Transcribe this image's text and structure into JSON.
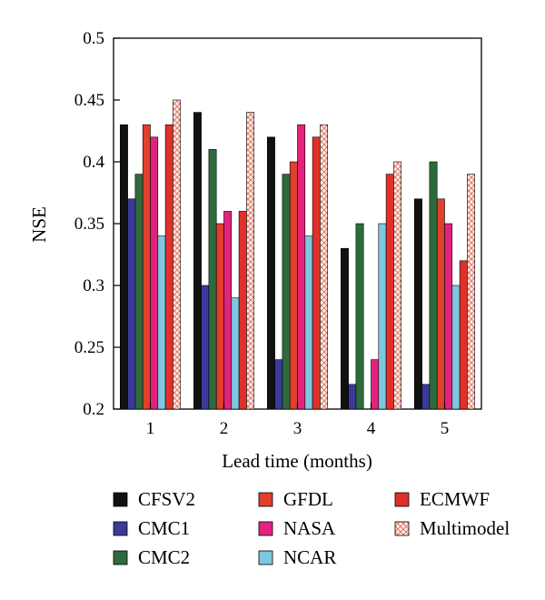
{
  "chart_data": {
    "type": "bar",
    "xlabel": "Lead time (months)",
    "ylabel": "NSE",
    "ylim": [
      0.2,
      0.5
    ],
    "yticks": [
      "0.2",
      "0.25",
      "0.3",
      "0.35",
      "0.4",
      "0.45",
      "0.5"
    ],
    "categories": [
      "1",
      "2",
      "3",
      "4",
      "5"
    ],
    "grid": false,
    "legend_placement": "bottom",
    "series": [
      {
        "name": "CFSV2",
        "color": "#111111",
        "values": [
          0.43,
          0.44,
          0.42,
          0.33,
          0.37
        ]
      },
      {
        "name": "CMC1",
        "color": "#3b3a9a",
        "values": [
          0.37,
          0.3,
          0.24,
          0.22,
          0.22
        ]
      },
      {
        "name": "CMC2",
        "color": "#2e6b3c",
        "values": [
          0.39,
          0.41,
          0.39,
          0.35,
          0.4
        ]
      },
      {
        "name": "GFDL",
        "color": "#e0402c",
        "values": [
          0.43,
          0.35,
          0.4,
          0.2,
          0.37
        ]
      },
      {
        "name": "NASA",
        "color": "#e2237e",
        "values": [
          0.42,
          0.36,
          0.43,
          0.24,
          0.35
        ]
      },
      {
        "name": "NCAR",
        "color": "#7ec7e0",
        "values": [
          0.34,
          0.29,
          0.34,
          0.35,
          0.3
        ]
      },
      {
        "name": "ECMWF",
        "color": "#e0302a",
        "values": [
          0.43,
          0.36,
          0.42,
          0.39,
          0.32
        ]
      },
      {
        "name": "Multimodel",
        "color": "#fbeee9",
        "pattern": "crosshatch",
        "values": [
          0.45,
          0.44,
          0.43,
          0.4,
          0.39
        ]
      }
    ]
  }
}
